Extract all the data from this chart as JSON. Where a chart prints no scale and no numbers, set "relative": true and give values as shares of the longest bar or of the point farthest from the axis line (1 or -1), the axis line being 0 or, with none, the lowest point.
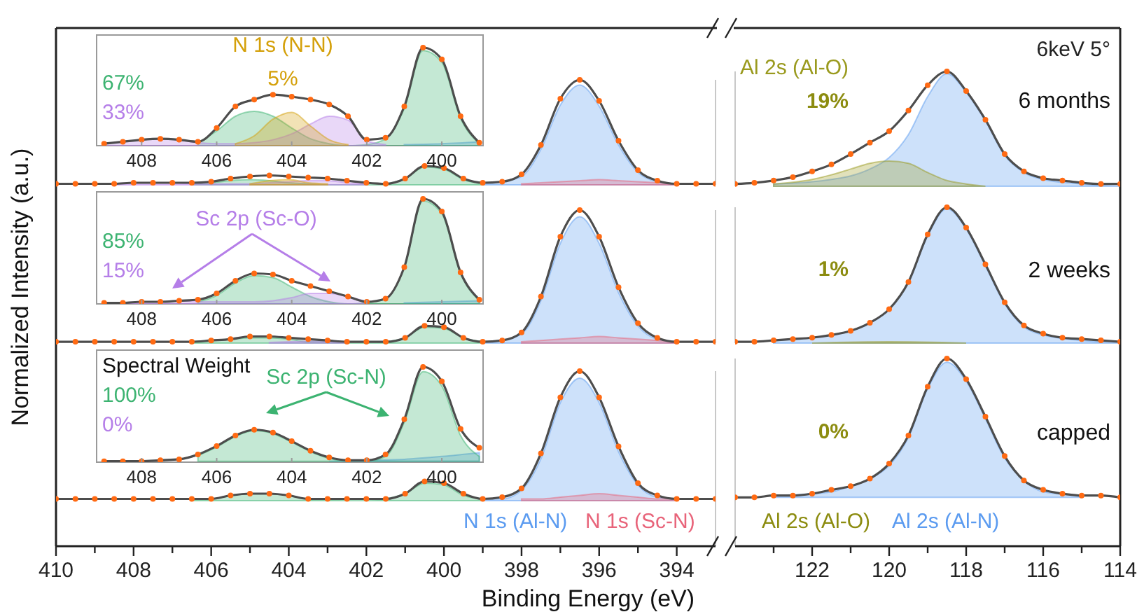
{
  "chart_data": [
    {
      "type": "area",
      "relative": true,
      "ylabel": "Normalized Intensity (a.u.)",
      "xlim": [
        410,
        393
      ],
      "tick_labels": false,
      "x": [
        410,
        409.5,
        409,
        408.5,
        408,
        407.5,
        407,
        406.5,
        406,
        405.5,
        405,
        404.5,
        404,
        403.5,
        403,
        402.5,
        402,
        401.5,
        401,
        400.5,
        400,
        399.5,
        399,
        398.5,
        398,
        397.5,
        397,
        396.5,
        396,
        395.5,
        395,
        394.5,
        394,
        393.5,
        393
      ],
      "series": [
        {
          "type": "area",
          "color": "#5b9bf0",
          "x": [
            399,
            398.5,
            398,
            397.5,
            397,
            396.5,
            396,
            395.5,
            395,
            394.5,
            394
          ],
          "values": [
            0.01,
            0.03,
            0.08,
            0.34,
            0.76,
            0.95,
            0.75,
            0.38,
            0.12,
            0.03,
            0.01
          ]
        },
        {
          "type": "area",
          "color": "#e8647a",
          "x": [
            398,
            397.5,
            397,
            396.5,
            396,
            395.5,
            395,
            394.5,
            394
          ],
          "values": [
            0.01,
            0.02,
            0.03,
            0.04,
            0.05,
            0.04,
            0.03,
            0.02,
            0.01
          ]
        },
        {
          "type": "area",
          "color": "#3cb371",
          "x": [
            406.5,
            406,
            405.5,
            405,
            404.5,
            404,
            403.5,
            403,
            402.5,
            402,
            401.5,
            401,
            400.5,
            400,
            399.5,
            399
          ],
          "values": [
            0.01,
            0.02,
            0.04,
            0.05,
            0.04,
            0.02,
            0.01,
            0,
            0,
            0,
            0.01,
            0.06,
            0.17,
            0.15,
            0.05,
            0.01
          ]
        },
        {
          "type": "area",
          "color": "#b57ee8",
          "x": [
            408.5,
            408,
            407.5,
            407,
            406.5,
            406,
            405.5,
            405,
            404.5,
            404,
            403.5,
            403,
            402.5,
            402
          ],
          "values": [
            0.01,
            0.02,
            0.02,
            0.02,
            0.01,
            0.01,
            0.01,
            0.01,
            0.02,
            0.03,
            0.04,
            0.04,
            0.02,
            0.01
          ]
        },
        {
          "type": "area",
          "color": "#d4a00a",
          "x": [
            405,
            404.5,
            404,
            403.5,
            403
          ],
          "values": [
            0.01,
            0.04,
            0.05,
            0.02,
            0.01
          ]
        },
        {
          "type": "line",
          "color": "#4d4d4d",
          "values": [
            0.01,
            0.01,
            0.01,
            0.01,
            0.02,
            0.02,
            0.02,
            0.02,
            0.03,
            0.06,
            0.08,
            0.09,
            0.08,
            0.07,
            0.06,
            0.04,
            0.02,
            0.01,
            0.06,
            0.18,
            0.16,
            0.06,
            0.02,
            0.03,
            0.1,
            0.38,
            0.82,
            1.0,
            0.8,
            0.42,
            0.14,
            0.04,
            0.01,
            0.01,
            0.01
          ]
        },
        {
          "type": "scatter",
          "color": "#ff6a13",
          "values": [
            0.01,
            0.01,
            0.01,
            0.01,
            0.02,
            0.02,
            0.02,
            0.02,
            0.03,
            0.06,
            0.08,
            0.09,
            0.08,
            0.07,
            0.06,
            0.04,
            0.02,
            0.01,
            0.06,
            0.18,
            0.16,
            0.06,
            0.02,
            0.03,
            0.1,
            0.38,
            0.82,
            1.0,
            0.8,
            0.42,
            0.14,
            0.04,
            0.01,
            0.01,
            0.01
          ]
        }
      ]
    },
    {
      "type": "area",
      "relative": true,
      "title": "6 months",
      "annotations": [
        "6keV 5°",
        "19%"
      ],
      "xlim": [
        124,
        114
      ],
      "tick_labels": false,
      "x": [
        124,
        123.5,
        123,
        122.5,
        122,
        121.5,
        121,
        120.5,
        120,
        119.5,
        119,
        118.5,
        118,
        117.5,
        117,
        116.5,
        116,
        115.5,
        115,
        114.5,
        114
      ],
      "series": [
        {
          "type": "area",
          "color": "#5b9bf0",
          "x": [
            123,
            122,
            121.5,
            121,
            120.5,
            120,
            119.5,
            119,
            118.5,
            118,
            117.5,
            117,
            116.5,
            116,
            115,
            114
          ],
          "values": [
            0.02,
            0.04,
            0.06,
            0.09,
            0.15,
            0.25,
            0.45,
            0.78,
            0.98,
            0.82,
            0.57,
            0.27,
            0.12,
            0.06,
            0.02,
            0
          ]
        },
        {
          "type": "area",
          "name": "Al 2s (Al-O)",
          "color": "#9a9a1e",
          "x": [
            123,
            122,
            121.5,
            121,
            120.5,
            120,
            119.5,
            119,
            118.5,
            118,
            117.5
          ],
          "values": [
            0.02,
            0.06,
            0.1,
            0.15,
            0.2,
            0.22,
            0.2,
            0.12,
            0.05,
            0.02,
            0
          ]
        },
        {
          "type": "line",
          "color": "#4d4d4d",
          "values": [
            0.02,
            0.03,
            0.05,
            0.08,
            0.13,
            0.19,
            0.28,
            0.38,
            0.48,
            0.66,
            0.88,
            1.0,
            0.83,
            0.58,
            0.28,
            0.13,
            0.07,
            0.05,
            0.03,
            0.02,
            0.02
          ]
        },
        {
          "type": "scatter",
          "color": "#ff6a13",
          "values": [
            0.02,
            0.03,
            0.05,
            0.08,
            0.13,
            0.19,
            0.28,
            0.38,
            0.48,
            0.66,
            0.88,
            1.0,
            0.83,
            0.58,
            0.28,
            0.13,
            0.07,
            0.05,
            0.03,
            0.02,
            0.02
          ]
        }
      ]
    },
    {
      "type": "area",
      "relative": true,
      "xlim": [
        410,
        393
      ],
      "tick_labels": false,
      "x": [
        410,
        409.5,
        409,
        408.5,
        408,
        407.5,
        407,
        406.5,
        406,
        405.5,
        405,
        404.5,
        404,
        403.5,
        403,
        402.5,
        402,
        401.5,
        401,
        400.5,
        400,
        399.5,
        399,
        398.5,
        398,
        397.5,
        397,
        396.5,
        396,
        395.5,
        395,
        394.5,
        394,
        393.5,
        393
      ],
      "series": [
        {
          "type": "area",
          "color": "#5b9bf0",
          "x": [
            399,
            398.5,
            398,
            397.5,
            397,
            396.5,
            396,
            395.5,
            395,
            394.5,
            394
          ],
          "values": [
            0.01,
            0.02,
            0.07,
            0.32,
            0.75,
            0.95,
            0.75,
            0.38,
            0.13,
            0.03,
            0.01
          ]
        },
        {
          "type": "area",
          "color": "#e8647a",
          "x": [
            398,
            397.5,
            397,
            396.5,
            396,
            395.5,
            395,
            394.5,
            394
          ],
          "values": [
            0.01,
            0.02,
            0.03,
            0.04,
            0.05,
            0.04,
            0.03,
            0.02,
            0.01
          ]
        },
        {
          "type": "area",
          "color": "#3cb371",
          "x": [
            406.5,
            406,
            405.5,
            405,
            404.5,
            404,
            403.5,
            403,
            402.5,
            402,
            401.5,
            401,
            400.5,
            400,
            399.5,
            399
          ],
          "values": [
            0.01,
            0.02,
            0.03,
            0.04,
            0.04,
            0.03,
            0.01,
            0.01,
            0,
            0,
            0.01,
            0.04,
            0.12,
            0.11,
            0.04,
            0.01
          ]
        },
        {
          "type": "area",
          "color": "#b57ee8",
          "x": [
            404.5,
            404,
            403.5,
            403,
            402.5
          ],
          "values": [
            0.005,
            0.01,
            0.015,
            0.01,
            0.005
          ]
        },
        {
          "type": "line",
          "color": "#4d4d4d",
          "values": [
            0.01,
            0.01,
            0.01,
            0.01,
            0.01,
            0.01,
            0.01,
            0.01,
            0.02,
            0.03,
            0.05,
            0.05,
            0.04,
            0.03,
            0.02,
            0.01,
            0.01,
            0.01,
            0.04,
            0.13,
            0.12,
            0.04,
            0.01,
            0.02,
            0.08,
            0.35,
            0.8,
            1.0,
            0.8,
            0.42,
            0.15,
            0.04,
            0.01,
            0.01,
            0.01
          ]
        },
        {
          "type": "scatter",
          "color": "#ff6a13",
          "values": [
            0.01,
            0.01,
            0.01,
            0.01,
            0.01,
            0.01,
            0.01,
            0.01,
            0.02,
            0.03,
            0.05,
            0.05,
            0.04,
            0.03,
            0.02,
            0.01,
            0.01,
            0.01,
            0.04,
            0.13,
            0.12,
            0.04,
            0.01,
            0.02,
            0.08,
            0.35,
            0.8,
            1.0,
            0.8,
            0.42,
            0.15,
            0.04,
            0.01,
            0.01,
            0.01
          ]
        }
      ]
    },
    {
      "type": "area",
      "relative": true,
      "title": "2 weeks",
      "annotations": [
        "1%"
      ],
      "xlim": [
        124,
        114
      ],
      "tick_labels": false,
      "x": [
        124,
        123.5,
        123,
        122.5,
        122,
        121.5,
        121,
        120.5,
        120,
        119.5,
        119,
        118.5,
        118,
        117.5,
        117,
        116.5,
        116,
        115.5,
        115,
        114.5,
        114
      ],
      "series": [
        {
          "type": "area",
          "color": "#5b9bf0",
          "x": [
            123,
            122,
            121.5,
            121,
            120.5,
            120,
            119.5,
            119,
            118.5,
            118,
            117.5,
            117,
            116.5,
            116,
            115,
            114
          ],
          "values": [
            0.02,
            0.04,
            0.06,
            0.09,
            0.15,
            0.25,
            0.45,
            0.79,
            0.99,
            0.84,
            0.57,
            0.29,
            0.12,
            0.06,
            0.02,
            0
          ]
        },
        {
          "type": "area",
          "color": "#9a9a1e",
          "x": [
            122,
            120,
            118
          ],
          "values": [
            0,
            0.01,
            0
          ]
        },
        {
          "type": "line",
          "color": "#4d4d4d",
          "values": [
            0.01,
            0.01,
            0.02,
            0.03,
            0.04,
            0.06,
            0.09,
            0.15,
            0.25,
            0.45,
            0.8,
            1.0,
            0.85,
            0.58,
            0.3,
            0.13,
            0.07,
            0.04,
            0.03,
            0.02,
            0.01
          ]
        },
        {
          "type": "scatter",
          "color": "#ff6a13",
          "values": [
            0.01,
            0.01,
            0.02,
            0.03,
            0.04,
            0.06,
            0.09,
            0.15,
            0.25,
            0.45,
            0.8,
            1.0,
            0.85,
            0.58,
            0.3,
            0.13,
            0.07,
            0.04,
            0.03,
            0.02,
            0.01
          ]
        }
      ]
    },
    {
      "type": "area",
      "relative": true,
      "xlabel": "Binding Energy (eV)",
      "xlim": [
        410,
        393
      ],
      "xticks": [
        410,
        {
          "value": 409,
          "label": null
        },
        408,
        {
          "value": 407,
          "label": null
        },
        406,
        {
          "value": 405,
          "label": null
        },
        404,
        {
          "value": 403,
          "label": null
        },
        402,
        {
          "value": 401,
          "label": null
        },
        400,
        {
          "value": 399,
          "label": null
        },
        398,
        {
          "value": 397,
          "label": null
        },
        396,
        {
          "value": 395,
          "label": null
        },
        394
      ],
      "tick_labels": "x",
      "x": [
        410,
        409.5,
        409,
        408.5,
        408,
        407.5,
        407,
        406.5,
        406,
        405.5,
        405,
        404.5,
        404,
        403.5,
        403,
        402.5,
        402,
        401.5,
        401,
        400.5,
        400,
        399.5,
        399,
        398.5,
        398,
        397.5,
        397,
        396.5,
        396,
        395.5,
        395,
        394.5,
        394,
        393.5,
        393
      ],
      "series": [
        {
          "type": "area",
          "name": "N 1s (Al-N)",
          "color": "#5b9bf0",
          "x": [
            399,
            398.5,
            398,
            397.5,
            397,
            396.5,
            396,
            395.5,
            395,
            394.5,
            394
          ],
          "values": [
            0.27,
            0.27,
            0.32,
            0.5,
            0.82,
            0.96,
            0.82,
            0.54,
            0.35,
            0.28,
            0.27
          ]
        },
        {
          "type": "area",
          "name": "N 1s (Sc-N)",
          "color": "#e8647a",
          "x": [
            398,
            397.5,
            397,
            396.5,
            396,
            395.5,
            395,
            394.5,
            394
          ],
          "values": [
            0.27,
            0.27,
            0.28,
            0.29,
            0.3,
            0.29,
            0.28,
            0.27,
            0.27
          ]
        },
        {
          "type": "area",
          "color": "#3cb371",
          "x": [
            406.5,
            406,
            405.5,
            405,
            404.5,
            404,
            403.5,
            403,
            402.5,
            402,
            401.5,
            401,
            400.5,
            400,
            399.5,
            399
          ],
          "values": [
            0.27,
            0.27,
            0.29,
            0.3,
            0.3,
            0.29,
            0.27,
            0.27,
            0.26,
            0.26,
            0.27,
            0.3,
            0.36,
            0.35,
            0.29,
            0.27
          ]
        },
        {
          "type": "line",
          "color": "#4d4d4d",
          "values": [
            0.27,
            0.27,
            0.27,
            0.27,
            0.27,
            0.27,
            0.27,
            0.27,
            0.27,
            0.29,
            0.3,
            0.3,
            0.29,
            0.27,
            0.27,
            0.27,
            0.27,
            0.27,
            0.3,
            0.37,
            0.36,
            0.3,
            0.27,
            0.28,
            0.33,
            0.53,
            0.85,
            1.0,
            0.85,
            0.57,
            0.36,
            0.29,
            0.27,
            0.27,
            0.27
          ]
        },
        {
          "type": "scatter",
          "color": "#ff6a13",
          "values": [
            0.27,
            0.27,
            0.27,
            0.27,
            0.27,
            0.27,
            0.27,
            0.27,
            0.27,
            0.29,
            0.3,
            0.3,
            0.29,
            0.27,
            0.27,
            0.27,
            0.27,
            0.27,
            0.3,
            0.37,
            0.36,
            0.3,
            0.27,
            0.28,
            0.33,
            0.53,
            0.85,
            1.0,
            0.85,
            0.57,
            0.36,
            0.29,
            0.27,
            0.27,
            0.27
          ]
        }
      ]
    },
    {
      "type": "area",
      "relative": true,
      "title": "capped",
      "annotations": [
        "0%",
        "Al 2s (Al-O)"
      ],
      "xlim": [
        124,
        114
      ],
      "xticks": [
        {
          "value": 123,
          "label": null
        },
        122,
        {
          "value": 121,
          "label": null
        },
        120,
        {
          "value": 119,
          "label": null
        },
        118,
        {
          "value": 117,
          "label": null
        },
        116,
        {
          "value": 115,
          "label": null
        },
        114
      ],
      "tick_labels": "x",
      "x": [
        124,
        123.5,
        123,
        122.5,
        122,
        121.5,
        121,
        120.5,
        120,
        119.5,
        119,
        118.5,
        118,
        117.5,
        117,
        116.5,
        116,
        115.5,
        115,
        114.5,
        114
      ],
      "series": [
        {
          "type": "area",
          "name": "Al 2s (Al-N)",
          "color": "#5b9bf0",
          "x": [
            123,
            122,
            121.5,
            121,
            120.5,
            120,
            119.5,
            119,
            118.5,
            118,
            117.5,
            117,
            116.5,
            116,
            115
          ],
          "values": [
            0.27,
            0.28,
            0.29,
            0.32,
            0.36,
            0.43,
            0.58,
            0.84,
            0.98,
            0.88,
            0.68,
            0.47,
            0.35,
            0.29,
            0.27
          ]
        },
        {
          "type": "line",
          "color": "#4d4d4d",
          "values": [
            0.26,
            0.26,
            0.27,
            0.27,
            0.28,
            0.3,
            0.32,
            0.36,
            0.44,
            0.59,
            0.85,
            1.0,
            0.89,
            0.69,
            0.48,
            0.35,
            0.3,
            0.28,
            0.27,
            0.27,
            0.26
          ]
        },
        {
          "type": "scatter",
          "color": "#ff6a13",
          "values": [
            0.26,
            0.26,
            0.27,
            0.27,
            0.28,
            0.3,
            0.32,
            0.36,
            0.44,
            0.59,
            0.85,
            1.0,
            0.89,
            0.69,
            0.48,
            0.35,
            0.3,
            0.28,
            0.27,
            0.27,
            0.26
          ]
        }
      ]
    },
    {
      "type": "area",
      "relative": true,
      "annotations": [
        "5%",
        "67%",
        "33%"
      ],
      "xlim": [
        409.2,
        398.9
      ],
      "xticks": [
        408,
        406,
        404,
        402,
        400
      ],
      "tick_labels": "x",
      "x": [
        409,
        408.5,
        408,
        407.5,
        407,
        406.5,
        406,
        405.5,
        405,
        404.5,
        404,
        403.5,
        403,
        402.5,
        402,
        401.5,
        401,
        400.5,
        400,
        399.5,
        399
      ],
      "series": [
        {
          "type": "area",
          "color": "#5b9bf0",
          "x": [
            401,
            400,
            399
          ],
          "values": [
            0.01,
            0.02,
            0.04
          ]
        },
        {
          "type": "area",
          "color": "#3cb371",
          "x": [
            406.5,
            406,
            405.5,
            405,
            404.5,
            404,
            403.5,
            403,
            402.5,
            402,
            401.5,
            401,
            400.5,
            400,
            399.5,
            399
          ],
          "values": [
            0.03,
            0.15,
            0.3,
            0.35,
            0.3,
            0.18,
            0.07,
            0.02,
            0,
            0.01,
            0.07,
            0.38,
            0.97,
            0.85,
            0.28,
            0.02
          ]
        },
        {
          "type": "area",
          "color": "#b57ee8",
          "x": [
            409,
            408.5,
            408,
            407.5,
            407,
            406.5,
            406,
            405.5,
            405,
            404.5,
            404,
            403.5,
            403,
            402.5,
            402,
            401.5
          ],
          "values": [
            0.02,
            0.04,
            0.06,
            0.07,
            0.06,
            0.03,
            0.02,
            0.02,
            0.03,
            0.06,
            0.12,
            0.22,
            0.3,
            0.26,
            0.05,
            0.01
          ]
        },
        {
          "type": "area",
          "name": "N 1s (N-N)",
          "color": "#d4a00a",
          "x": [
            405.5,
            405,
            404.5,
            404,
            403.5,
            403,
            402.5
          ],
          "values": [
            0.02,
            0.1,
            0.27,
            0.34,
            0.2,
            0.06,
            0.01
          ]
        },
        {
          "type": "line",
          "color": "#4d4d4d",
          "values": [
            0.02,
            0.04,
            0.06,
            0.07,
            0.06,
            0.04,
            0.18,
            0.4,
            0.47,
            0.52,
            0.5,
            0.47,
            0.42,
            0.3,
            0.06,
            0.08,
            0.4,
            1.0,
            0.88,
            0.3,
            0.03
          ]
        },
        {
          "type": "scatter",
          "color": "#ff6a13",
          "values": [
            0.02,
            0.04,
            0.06,
            0.07,
            0.06,
            0.04,
            0.18,
            0.4,
            0.47,
            0.52,
            0.5,
            0.47,
            0.42,
            0.3,
            0.06,
            0.08,
            0.4,
            1.0,
            0.88,
            0.3,
            0.03
          ]
        }
      ]
    },
    {
      "type": "area",
      "relative": true,
      "annotations": [
        "85%",
        "15%"
      ],
      "xlim": [
        409.2,
        398.9
      ],
      "xticks": [
        408,
        406,
        404,
        402,
        400
      ],
      "tick_labels": "x",
      "x": [
        409,
        408.5,
        408,
        407.5,
        407,
        406.5,
        406,
        405.5,
        405,
        404.5,
        404,
        403.5,
        403,
        402.5,
        402,
        401.5,
        401,
        400.5,
        400,
        399.5,
        399
      ],
      "series": [
        {
          "type": "area",
          "color": "#5b9bf0",
          "x": [
            401,
            400,
            399
          ],
          "values": [
            0.01,
            0.02,
            0.03
          ]
        },
        {
          "type": "area",
          "color": "#3cb371",
          "x": [
            406.5,
            406,
            405.5,
            405,
            404.5,
            404,
            403.5,
            403,
            402.5,
            402,
            401.5,
            401,
            400.5,
            400,
            399.5,
            399
          ],
          "values": [
            0.02,
            0.08,
            0.2,
            0.27,
            0.25,
            0.16,
            0.07,
            0.02,
            0,
            0.01,
            0.05,
            0.35,
            0.98,
            0.86,
            0.29,
            0.03
          ]
        },
        {
          "type": "area",
          "name": "Sc 2p (Sc-O)",
          "color": "#b57ee8",
          "x": [
            408.5,
            408,
            407.5,
            407,
            406.5,
            406,
            405.5,
            405,
            404.5,
            404,
            403.5,
            403,
            402.5,
            402
          ],
          "values": [
            0.01,
            0.02,
            0.02,
            0.03,
            0.02,
            0.02,
            0.02,
            0.02,
            0.03,
            0.06,
            0.1,
            0.1,
            0.07,
            0.02
          ]
        },
        {
          "type": "line",
          "color": "#4d4d4d",
          "values": [
            0.01,
            0.01,
            0.02,
            0.02,
            0.03,
            0.04,
            0.1,
            0.22,
            0.29,
            0.28,
            0.22,
            0.17,
            0.12,
            0.07,
            0.02,
            0.05,
            0.35,
            1.0,
            0.88,
            0.3,
            0.04
          ]
        },
        {
          "type": "scatter",
          "color": "#ff6a13",
          "values": [
            0.01,
            0.01,
            0.02,
            0.02,
            0.03,
            0.04,
            0.1,
            0.22,
            0.29,
            0.28,
            0.22,
            0.17,
            0.12,
            0.07,
            0.02,
            0.05,
            0.35,
            1.0,
            0.88,
            0.3,
            0.04
          ]
        }
      ]
    },
    {
      "type": "area",
      "relative": true,
      "annotations": [
        "Spectral Weight",
        "100%",
        "0%"
      ],
      "xlim": [
        409.2,
        398.9
      ],
      "xticks": [
        408,
        406,
        404,
        402,
        400
      ],
      "tick_labels": "x",
      "x": [
        409,
        408.5,
        408,
        407.5,
        407,
        406.5,
        406,
        405.5,
        405,
        404.5,
        404,
        403.5,
        403,
        402.5,
        402,
        401.5,
        401,
        400.5,
        400,
        399.5,
        399
      ],
      "series": [
        {
          "type": "area",
          "color": "#5b9bf0",
          "x": [
            403,
            402,
            401,
            400,
            399
          ],
          "values": [
            0.01,
            0.02,
            0.03,
            0.06,
            0.1
          ]
        },
        {
          "type": "area",
          "name": "Sc 2p (Sc-N)",
          "color": "#3cb371",
          "x": [
            406.5,
            406,
            405.5,
            405,
            404.5,
            404,
            403.5,
            403,
            402.5,
            402,
            401.5,
            401,
            400.5,
            400,
            399.5,
            399
          ],
          "values": [
            0.07,
            0.16,
            0.27,
            0.33,
            0.3,
            0.21,
            0.11,
            0.04,
            0.01,
            0.01,
            0.06,
            0.42,
            0.95,
            0.8,
            0.28,
            0.06
          ]
        },
        {
          "type": "line",
          "color": "#4d4d4d",
          "values": [
            0.01,
            0.01,
            0.01,
            0.02,
            0.03,
            0.08,
            0.17,
            0.28,
            0.34,
            0.31,
            0.22,
            0.12,
            0.05,
            0.02,
            0.02,
            0.08,
            0.45,
            1.0,
            0.85,
            0.35,
            0.15
          ]
        },
        {
          "type": "scatter",
          "color": "#ff6a13",
          "values": [
            0.01,
            0.01,
            0.01,
            0.02,
            0.03,
            0.08,
            0.17,
            0.28,
            0.34,
            0.31,
            0.22,
            0.12,
            0.05,
            0.02,
            0.02,
            0.08,
            0.45,
            1.0,
            0.85,
            0.35,
            0.15
          ]
        }
      ]
    }
  ]
}
